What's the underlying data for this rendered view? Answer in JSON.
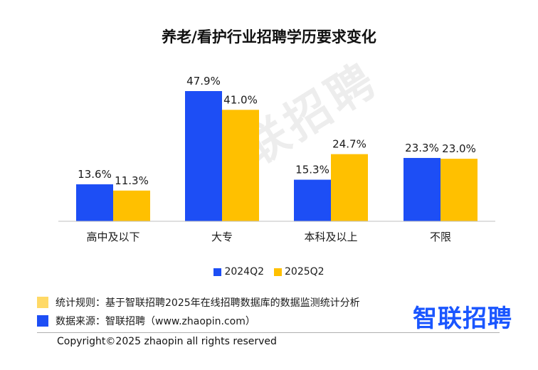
{
  "title": "养老/看护行业招聘学历要求变化",
  "watermark": "智联招聘",
  "colors": {
    "series1": "#1d4ef5",
    "series2": "#ffc000",
    "note1": "#ffd966",
    "note2": "#1d4ef5",
    "brand": "#1a56ff"
  },
  "chart_data": {
    "type": "bar",
    "title": "养老/看护行业招聘学历要求变化",
    "categories": [
      "高中及以下",
      "大专",
      "本科及以上",
      "不限"
    ],
    "series": [
      {
        "name": "2024Q2",
        "values": [
          13.6,
          47.9,
          15.3,
          23.3
        ],
        "labels": [
          "13.6%",
          "47.9%",
          "15.3%",
          "23.3%"
        ]
      },
      {
        "name": "2025Q2",
        "values": [
          11.3,
          41.0,
          24.7,
          23.0
        ],
        "labels": [
          "11.3%",
          "41.0%",
          "24.7%",
          "23.0%"
        ]
      }
    ],
    "ylim": [
      0,
      50
    ],
    "legend_position": "bottom",
    "grid": false
  },
  "notes": {
    "rule": "统计规则：基于智联招聘2025年在线招聘数据库的数据监测统计分析",
    "source": "数据来源：智联招聘（www.zhaopin.com）"
  },
  "brand": "智联招聘",
  "copyright": "Copyright©2025 zhaopin all rights reserved"
}
